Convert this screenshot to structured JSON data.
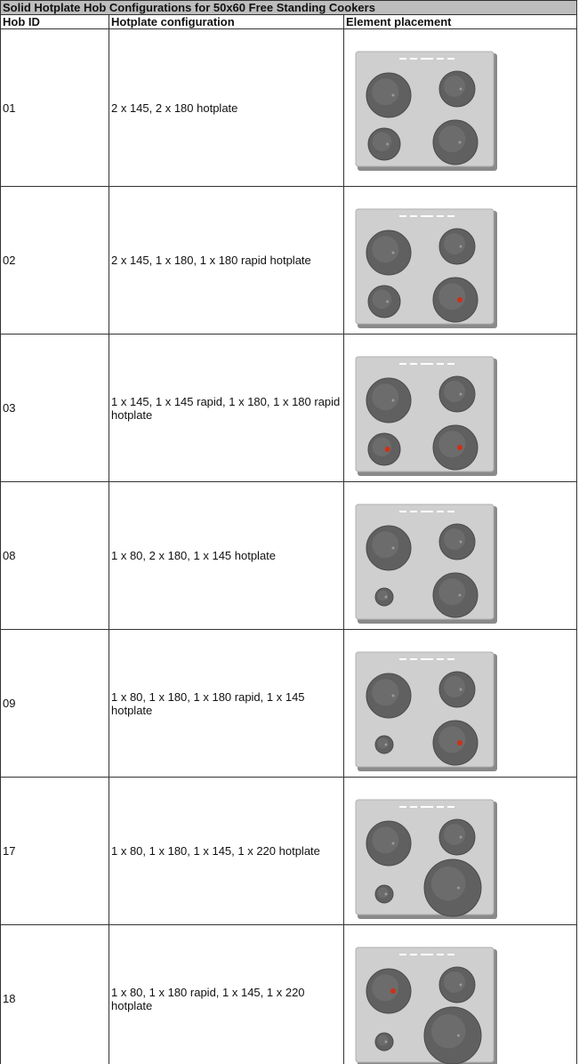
{
  "title": "Solid Hotplate Hob Configurations for 50x60 Free Standing Cookers",
  "table": {
    "header": [
      "Hob ID",
      "Hotplate configuration",
      "Element placement"
    ],
    "rows": [
      [
        "01",
        "2 x 145, 2 x 180 hotplate"
      ],
      [
        "02",
        "2 x 145, 1 x 180, 1 x 180 rapid hotplate"
      ],
      [
        "03",
        "1 x 145, 1 x 145 rapid, 1 x 180, 1 x 180 rapid hotplate"
      ],
      [
        "08",
        "1 x 80, 2 x 180, 1 x 145 hotplate"
      ],
      [
        "09",
        "1 x 80, 1 x 180, 1 x 180 rapid, 1 x 145 hotplate"
      ],
      [
        "17",
        "1 x 80, 1 x 180, 1 x 145, 1 x 220 hotplate"
      ],
      [
        "18",
        "1 x 80, 1 x 180 rapid, 1 x 145, 1 x 220 hotplate"
      ]
    ]
  }
}
